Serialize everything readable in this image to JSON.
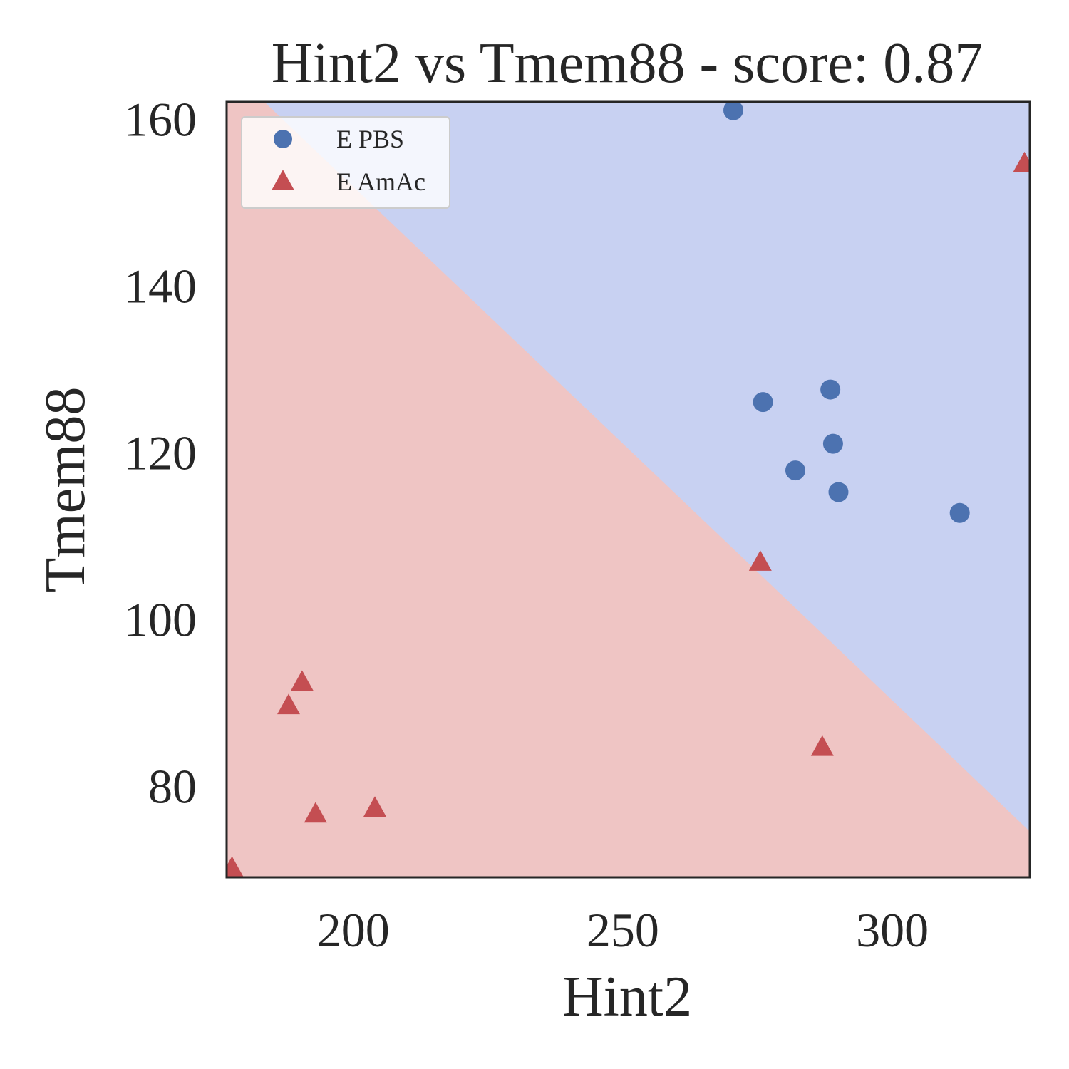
{
  "chart_data": {
    "type": "scatter",
    "title": "Hint2 vs Tmem88 - score: 0.87",
    "xlabel": "Hint2",
    "ylabel": "Tmem88",
    "xlim": [
      176.5,
      325.5
    ],
    "ylim": [
      69.0,
      162.0
    ],
    "xticks": [
      200,
      250,
      300
    ],
    "yticks": [
      80,
      100,
      120,
      140,
      160
    ],
    "grid": false,
    "legend_position": "top-left",
    "decision_boundary": {
      "points": [
        [
          183.5,
          162.0
        ],
        [
          325.5,
          74.5
        ]
      ],
      "region_colors": {
        "E PBS": "#c8d1f2",
        "E AmAc": "#efc5c4"
      }
    },
    "series": [
      {
        "name": "E PBS",
        "marker": "circle",
        "color": "#4c72b0",
        "points": [
          [
            270.5,
            161.0
          ],
          [
            276.0,
            126.0
          ],
          [
            288.5,
            127.5
          ],
          [
            289.0,
            121.0
          ],
          [
            282.0,
            117.8
          ],
          [
            290.0,
            115.2
          ],
          [
            312.5,
            112.7
          ]
        ]
      },
      {
        "name": "E AmAc",
        "marker": "triangle",
        "color": "#c44e52",
        "points": [
          [
            324.5,
            154.5
          ],
          [
            275.5,
            106.7
          ],
          [
            190.5,
            92.3
          ],
          [
            188.0,
            89.5
          ],
          [
            287.0,
            84.5
          ],
          [
            193.0,
            76.5
          ],
          [
            204.0,
            77.2
          ],
          [
            177.5,
            70.0
          ]
        ]
      }
    ]
  }
}
